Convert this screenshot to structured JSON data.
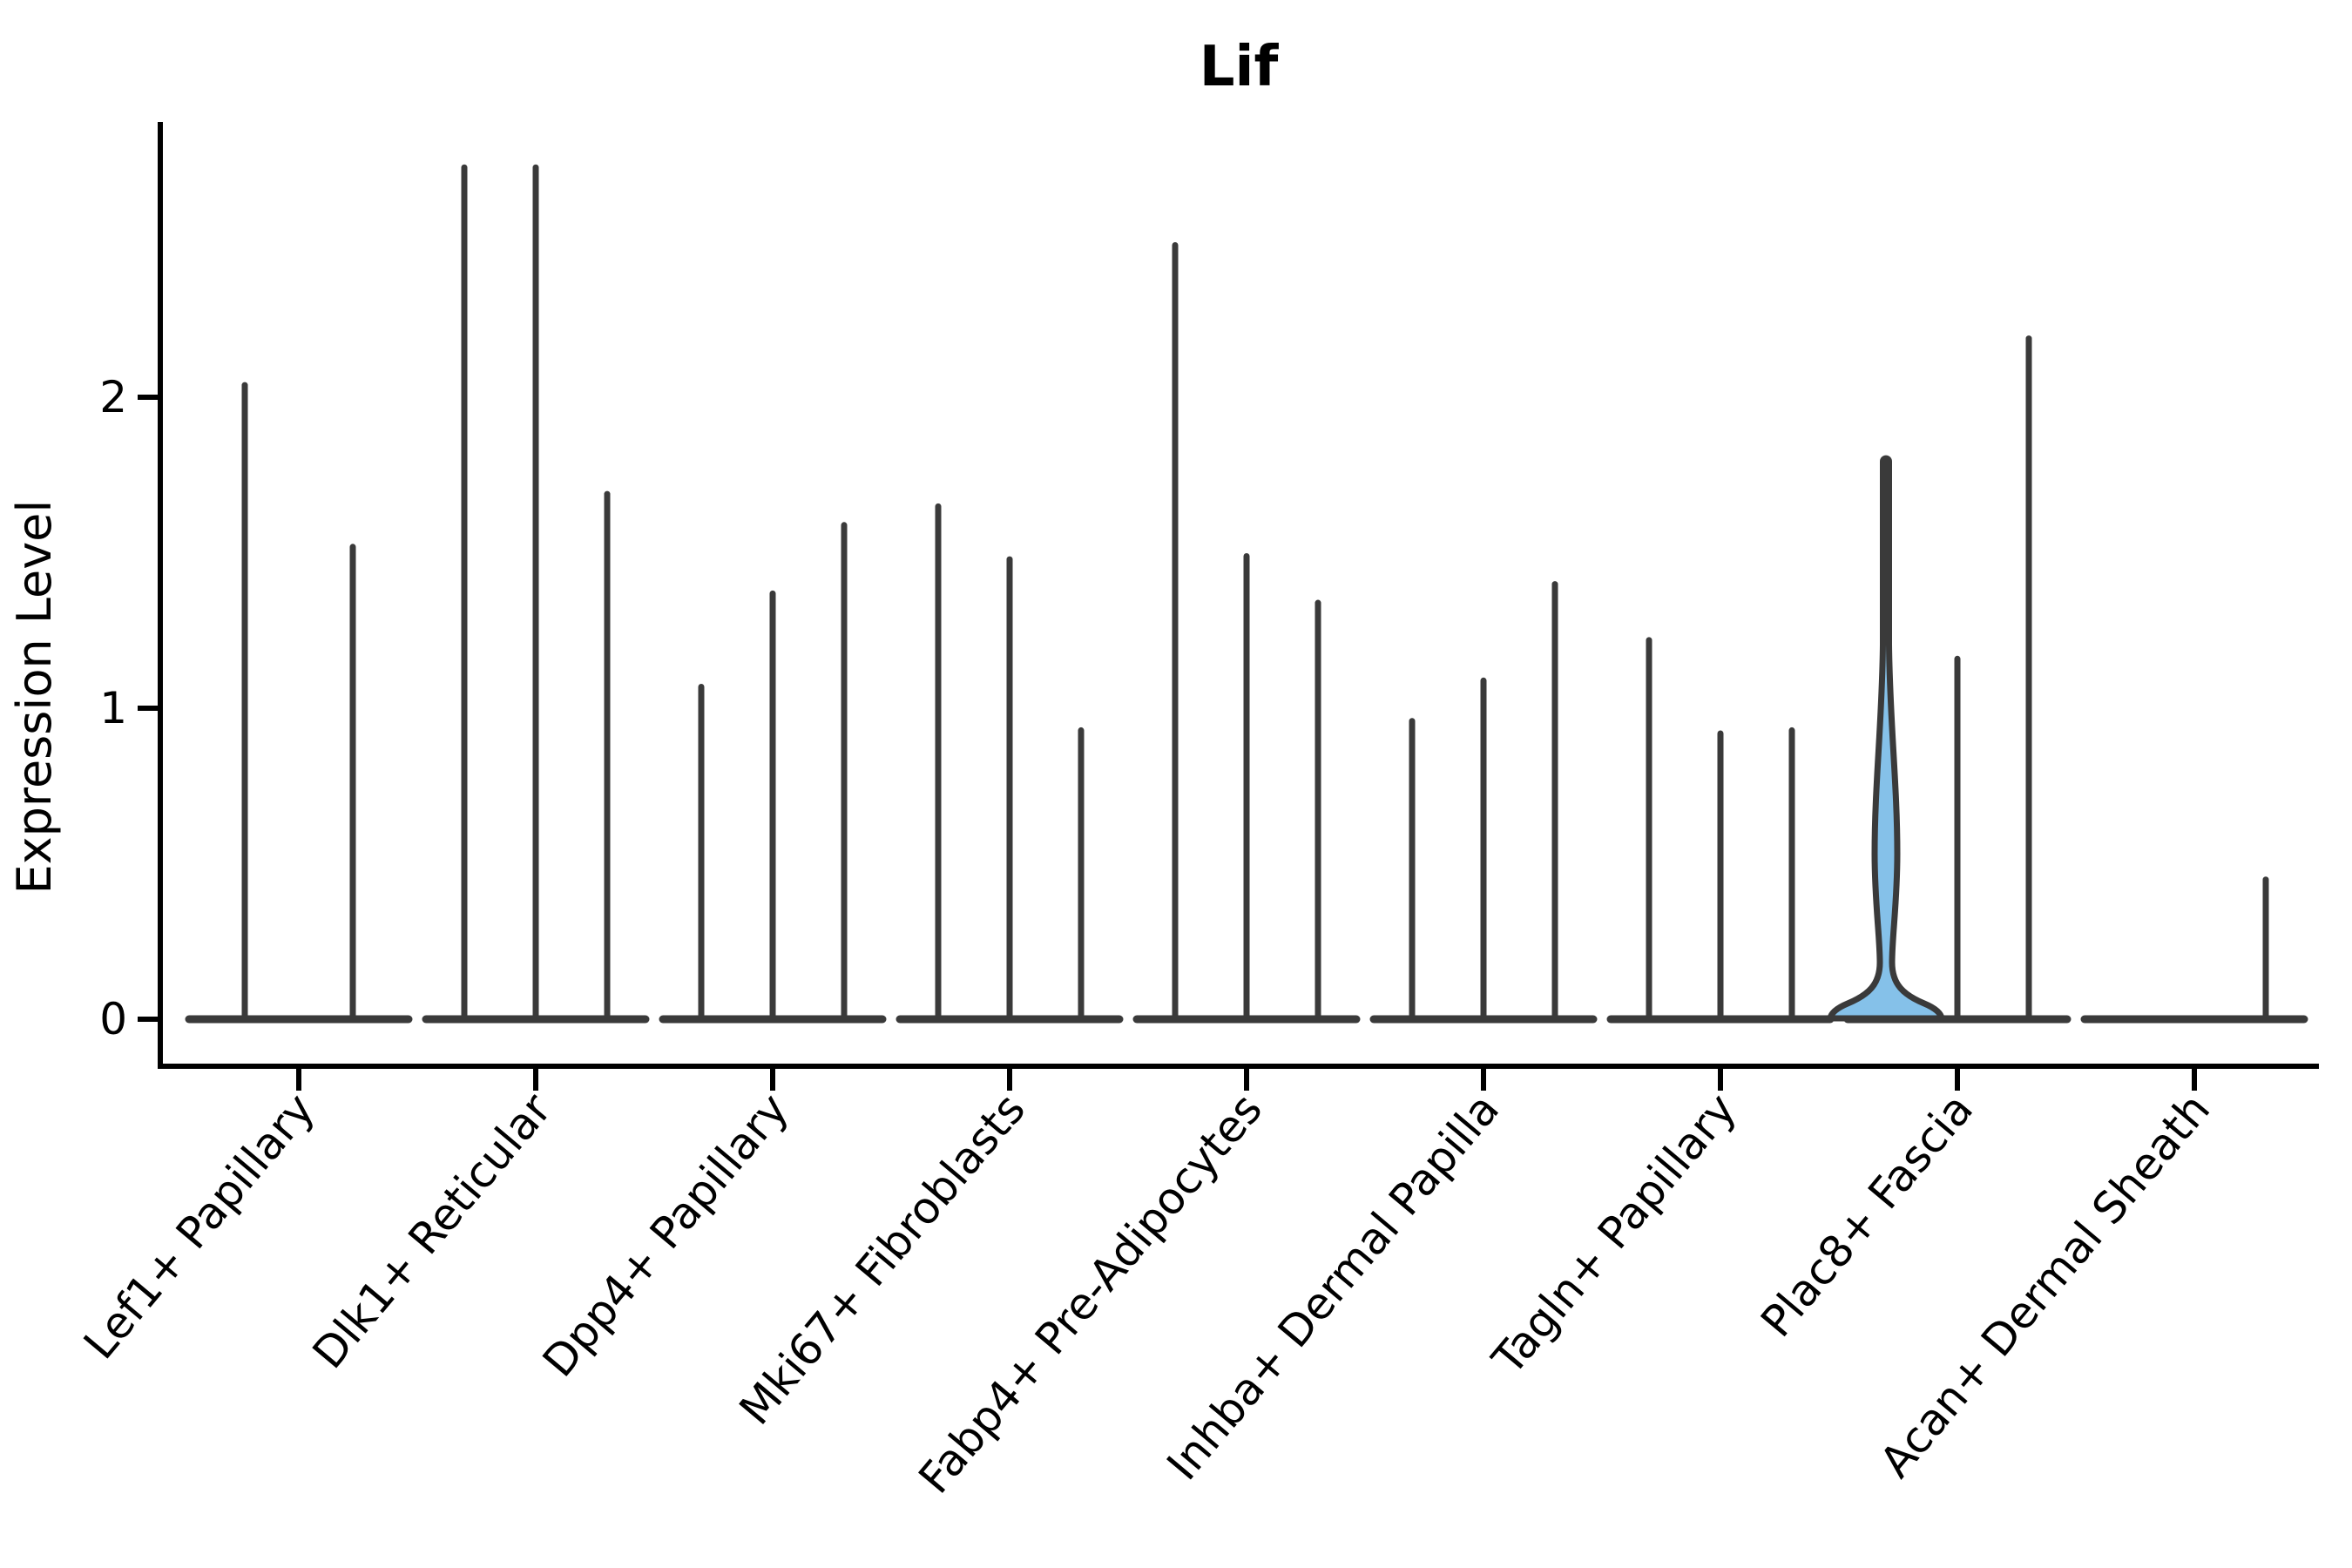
{
  "figure": {
    "background_color": "#ffffff",
    "kind": "matplotlib-violin-figure"
  },
  "chart_data": {
    "type": "violin",
    "title": "Lif",
    "xlabel": "",
    "ylabel": "Expression Level",
    "yticks": [
      "0",
      "1",
      "2"
    ],
    "ylim": [
      -0.15,
      2.89
    ],
    "grid": false,
    "legend_position": "none",
    "categories": [
      "Lef1+ Papillary",
      "Dlk1+ Reticular",
      "Dpp4+ Papillary",
      "Mki67+ Fibroblasts",
      "Fabp4+ Pre-Adipocytes",
      "Inhba+ Dermal Papilla",
      "Tagln+ Papillary",
      "Plac8+ Fascia",
      "Acan+ Dermal Sheath"
    ],
    "groups": [
      {
        "category": "Lef1+ Papillary",
        "violin_max_values": [
          2.05,
          1.53
        ],
        "highlighted_violin": null
      },
      {
        "category": "Dlk1+ Reticular",
        "violin_max_values": [
          2.75,
          2.75,
          1.7
        ],
        "highlighted_violin": null
      },
      {
        "category": "Dpp4+ Papillary",
        "violin_max_values": [
          1.08,
          1.38,
          1.6
        ],
        "highlighted_violin": null
      },
      {
        "category": "Mki67+ Fibroblasts",
        "violin_max_values": [
          1.66,
          1.49,
          0.94
        ],
        "highlighted_violin": null
      },
      {
        "category": "Fabp4+ Pre-Adipocytes",
        "violin_max_values": [
          2.5,
          1.5,
          1.35
        ],
        "highlighted_violin": null
      },
      {
        "category": "Inhba+ Dermal Papilla",
        "violin_max_values": [
          0.97,
          1.1,
          1.41
        ],
        "highlighted_violin": null
      },
      {
        "category": "Tagln+ Papillary",
        "violin_max_values": [
          1.23,
          0.93,
          0.94
        ],
        "highlighted_violin": null
      },
      {
        "category": "Plac8+ Fascia",
        "violin_max_values": [
          1.81,
          1.17,
          2.2
        ],
        "highlighted_violin": 0
      },
      {
        "category": "Acan+ Dermal Sheath",
        "violin_max_values": [
          0,
          0,
          0.46
        ],
        "highlighted_violin": null
      }
    ],
    "highlight_fill_color": "#85C1E9",
    "violin_line_color": "#3A3A3A",
    "axis_color": "#000000",
    "x_label_rotation_deg": 50
  }
}
